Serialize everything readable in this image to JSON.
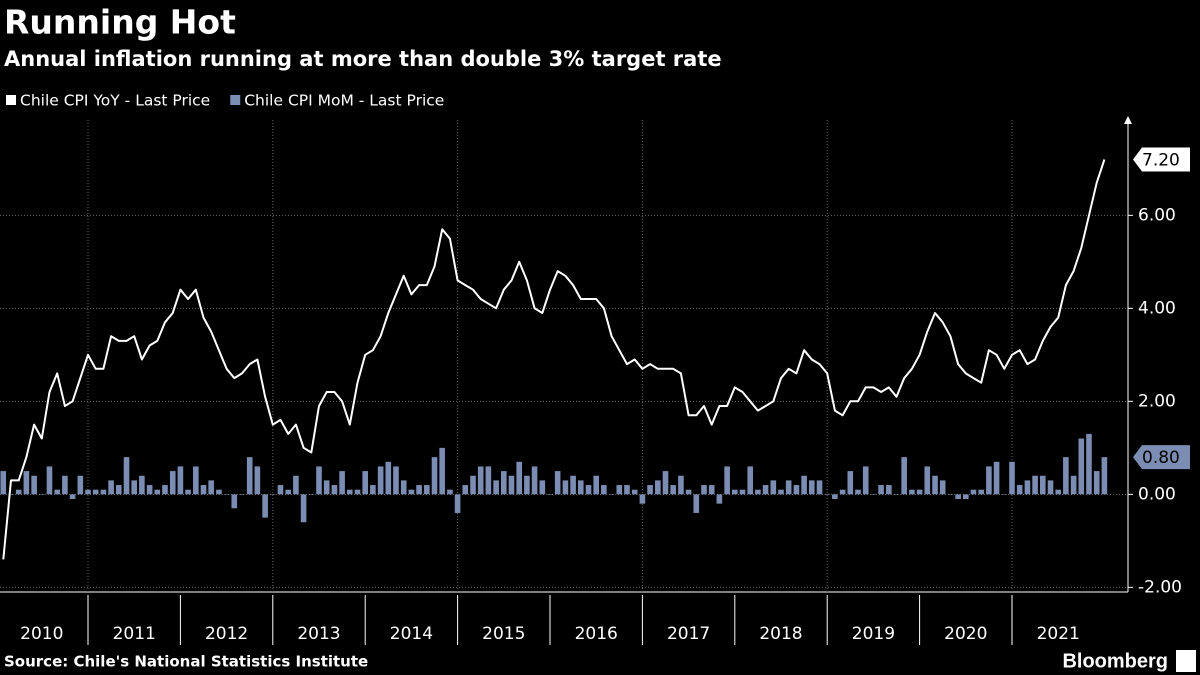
{
  "chart_data": {
    "type": "line-bar",
    "title": "Running Hot",
    "subtitle": "Annual inflation running at more than double 3% target rate",
    "source": "Source: Chile's National Statistics Institute",
    "brand": "Bloomberg",
    "x": [
      2010.083,
      2010.167,
      2010.25,
      2010.333,
      2010.417,
      2010.5,
      2010.583,
      2010.667,
      2010.75,
      2010.833,
      2010.917,
      2011,
      2011.083,
      2011.167,
      2011.25,
      2011.333,
      2011.417,
      2011.5,
      2011.583,
      2011.667,
      2011.75,
      2011.833,
      2011.917,
      2012,
      2012.083,
      2012.167,
      2012.25,
      2012.333,
      2012.417,
      2012.5,
      2012.583,
      2012.667,
      2012.75,
      2012.833,
      2012.917,
      2013,
      2013.083,
      2013.167,
      2013.25,
      2013.333,
      2013.417,
      2013.5,
      2013.583,
      2013.667,
      2013.75,
      2013.833,
      2013.917,
      2014,
      2014.083,
      2014.167,
      2014.25,
      2014.333,
      2014.417,
      2014.5,
      2014.583,
      2014.667,
      2014.75,
      2014.833,
      2014.917,
      2015,
      2015.083,
      2015.167,
      2015.25,
      2015.333,
      2015.417,
      2015.5,
      2015.583,
      2015.667,
      2015.75,
      2015.833,
      2015.917,
      2016,
      2016.083,
      2016.167,
      2016.25,
      2016.333,
      2016.417,
      2016.5,
      2016.583,
      2016.667,
      2016.75,
      2016.833,
      2016.917,
      2017,
      2017.083,
      2017.167,
      2017.25,
      2017.333,
      2017.417,
      2017.5,
      2017.583,
      2017.667,
      2017.75,
      2017.833,
      2017.917,
      2018,
      2018.083,
      2018.167,
      2018.25,
      2018.333,
      2018.417,
      2018.5,
      2018.583,
      2018.667,
      2018.75,
      2018.833,
      2018.917,
      2019,
      2019.083,
      2019.167,
      2019.25,
      2019.333,
      2019.417,
      2019.5,
      2019.583,
      2019.667,
      2019.75,
      2019.833,
      2019.917,
      2020,
      2020.083,
      2020.167,
      2020.25,
      2020.333,
      2020.417,
      2020.5,
      2020.583,
      2020.667,
      2020.75,
      2020.833,
      2020.917,
      2021,
      2021.083,
      2021.167,
      2021.25,
      2021.333,
      2021.417,
      2021.5,
      2021.583,
      2021.667,
      2021.75,
      2021.833,
      2021.917,
      2022
    ],
    "series": [
      {
        "name": "Chile CPI YoY - Last Price",
        "color": "#ffffff",
        "kind": "line",
        "last_label": "7.20",
        "values": [
          -1.4,
          0.3,
          0.3,
          0.8,
          1.5,
          1.2,
          2.2,
          2.6,
          1.9,
          2.0,
          2.5,
          3.0,
          2.7,
          2.7,
          3.4,
          3.3,
          3.3,
          3.4,
          2.9,
          3.2,
          3.3,
          3.7,
          3.9,
          4.4,
          4.2,
          4.4,
          3.8,
          3.5,
          3.1,
          2.7,
          2.5,
          2.6,
          2.8,
          2.9,
          2.1,
          1.5,
          1.6,
          1.3,
          1.5,
          1.0,
          0.9,
          1.9,
          2.2,
          2.2,
          2.0,
          1.5,
          2.4,
          3.0,
          3.1,
          3.4,
          3.9,
          4.3,
          4.7,
          4.3,
          4.5,
          4.5,
          4.9,
          5.7,
          5.5,
          4.6,
          4.5,
          4.4,
          4.2,
          4.1,
          4.0,
          4.4,
          4.6,
          5.0,
          4.6,
          4.0,
          3.9,
          4.4,
          4.8,
          4.7,
          4.5,
          4.2,
          4.2,
          4.2,
          4.0,
          3.4,
          3.1,
          2.8,
          2.9,
          2.7,
          2.8,
          2.7,
          2.7,
          2.7,
          2.6,
          1.7,
          1.7,
          1.9,
          1.5,
          1.9,
          1.9,
          2.3,
          2.2,
          2.0,
          1.8,
          1.9,
          2.0,
          2.5,
          2.7,
          2.6,
          3.1,
          2.9,
          2.8,
          2.6,
          1.8,
          1.7,
          2.0,
          2.0,
          2.3,
          2.3,
          2.2,
          2.3,
          2.1,
          2.5,
          2.7,
          3.0,
          3.5,
          3.9,
          3.7,
          3.4,
          2.8,
          2.6,
          2.5,
          2.4,
          3.1,
          3.0,
          2.7,
          3.0,
          3.1,
          2.8,
          2.9,
          3.3,
          3.6,
          3.8,
          4.5,
          4.8,
          5.3,
          6.0,
          6.7,
          7.2
        ]
      },
      {
        "name": "Chile CPI MoM - Last Price",
        "color": "#7b8db3",
        "kind": "bar",
        "last_label": "0.80",
        "values": [
          0.5,
          0.0,
          0.1,
          0.5,
          0.4,
          0.0,
          0.6,
          0.1,
          0.4,
          -0.1,
          0.4,
          0.1,
          0.1,
          0.1,
          0.3,
          0.2,
          0.8,
          0.3,
          0.4,
          0.2,
          0.1,
          0.2,
          0.5,
          0.6,
          0.1,
          0.6,
          0.2,
          0.3,
          0.1,
          0.0,
          -0.3,
          0.0,
          0.8,
          0.6,
          -0.5,
          0.0,
          0.2,
          0.1,
          0.4,
          -0.6,
          0.0,
          0.6,
          0.3,
          0.2,
          0.5,
          0.1,
          0.1,
          0.5,
          0.2,
          0.6,
          0.7,
          0.6,
          0.3,
          0.1,
          0.2,
          0.2,
          0.8,
          1.0,
          0.1,
          -0.4,
          0.2,
          0.4,
          0.6,
          0.6,
          0.3,
          0.5,
          0.4,
          0.7,
          0.4,
          0.6,
          0.3,
          0.0,
          0.5,
          0.3,
          0.4,
          0.3,
          0.2,
          0.4,
          0.2,
          0.0,
          0.2,
          0.2,
          0.1,
          -0.2,
          0.2,
          0.3,
          0.5,
          0.2,
          0.4,
          0.1,
          -0.4,
          0.2,
          0.2,
          -0.2,
          0.6,
          0.1,
          0.1,
          0.6,
          0.1,
          0.2,
          0.3,
          0.1,
          0.3,
          0.2,
          0.4,
          0.3,
          0.3,
          0.0,
          -0.1,
          0.1,
          0.5,
          0.1,
          0.6,
          0.0,
          0.2,
          0.2,
          0.0,
          0.8,
          0.1,
          0.1,
          0.6,
          0.4,
          0.3,
          0.0,
          -0.1,
          -0.1,
          0.1,
          0.1,
          0.6,
          0.7,
          0.0,
          0.7,
          0.2,
          0.3,
          0.4,
          0.4,
          0.3,
          0.1,
          0.8,
          0.4,
          1.2,
          1.3,
          0.5,
          0.8
        ]
      }
    ],
    "xlim": [
      2010,
      2022
    ],
    "xticks": [
      {
        "value": 2010.5,
        "label": "2010"
      },
      {
        "value": 2011.5,
        "label": "2011"
      },
      {
        "value": 2012.5,
        "label": "2012"
      },
      {
        "value": 2013.5,
        "label": "2013"
      },
      {
        "value": 2014.5,
        "label": "2014"
      },
      {
        "value": 2015.5,
        "label": "2015"
      },
      {
        "value": 2016.5,
        "label": "2016"
      },
      {
        "value": 2017.5,
        "label": "2017"
      },
      {
        "value": 2018.5,
        "label": "2018"
      },
      {
        "value": 2019.5,
        "label": "2019"
      },
      {
        "value": 2020.5,
        "label": "2020"
      },
      {
        "value": 2021.5,
        "label": "2021"
      }
    ],
    "ylim": [
      -2.1,
      8.05
    ],
    "yticks": [
      {
        "value": -2,
        "label": "-2.00"
      },
      {
        "value": 0,
        "label": "0.00"
      },
      {
        "value": 2,
        "label": "2.00"
      },
      {
        "value": 4,
        "label": "4.00"
      },
      {
        "value": 6,
        "label": "6.00"
      }
    ],
    "grid": true
  }
}
